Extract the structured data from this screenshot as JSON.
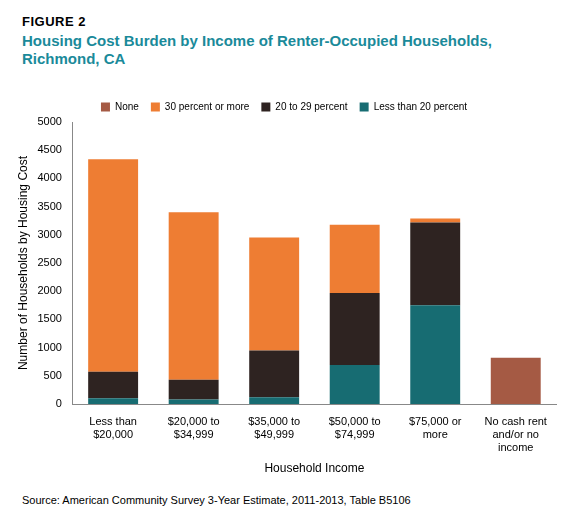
{
  "chart_data": {
    "type": "bar",
    "figure_label": "FIGURE 2",
    "title": "Housing Cost Burden by Income of Renter-Occupied Households, Richmond, CA",
    "source": "Source: American Community Survey 3-Year Estimate, 2011-2013, Table B5106",
    "x_label": "Household Income",
    "y_label": "Number of Households by Housing Cost",
    "categories": [
      [
        "Less than",
        "$20,000"
      ],
      [
        "$20,000 to",
        "$34,999"
      ],
      [
        "$35,000 to",
        "$49,999"
      ],
      [
        "$50,000 to",
        "$74,999"
      ],
      [
        "$75,000 or",
        "more"
      ],
      [
        "No cash rent",
        "and/or no",
        "income"
      ]
    ],
    "series": [
      {
        "name": "None",
        "color": "#a55a44",
        "values": [
          null,
          null,
          null,
          null,
          null,
          820
        ]
      },
      {
        "name": "30 percent or more",
        "color": "#ee7d33",
        "values": [
          3770,
          2970,
          2000,
          1210,
          70,
          null
        ]
      },
      {
        "name": "20 to 29 percent",
        "color": "#2e2321",
        "values": [
          470,
          350,
          830,
          1280,
          1470,
          null
        ]
      },
      {
        "name": "Less than 20 percent",
        "color": "#176c72",
        "values": [
          100,
          80,
          120,
          690,
          1750,
          null
        ]
      }
    ],
    "stacked": true,
    "legend": "top",
    "grid": false,
    "ylim": [
      0,
      5000
    ],
    "yticks": [
      0,
      500,
      1000,
      1500,
      2000,
      2500,
      3000,
      3500,
      4000,
      4500,
      5000
    ]
  }
}
